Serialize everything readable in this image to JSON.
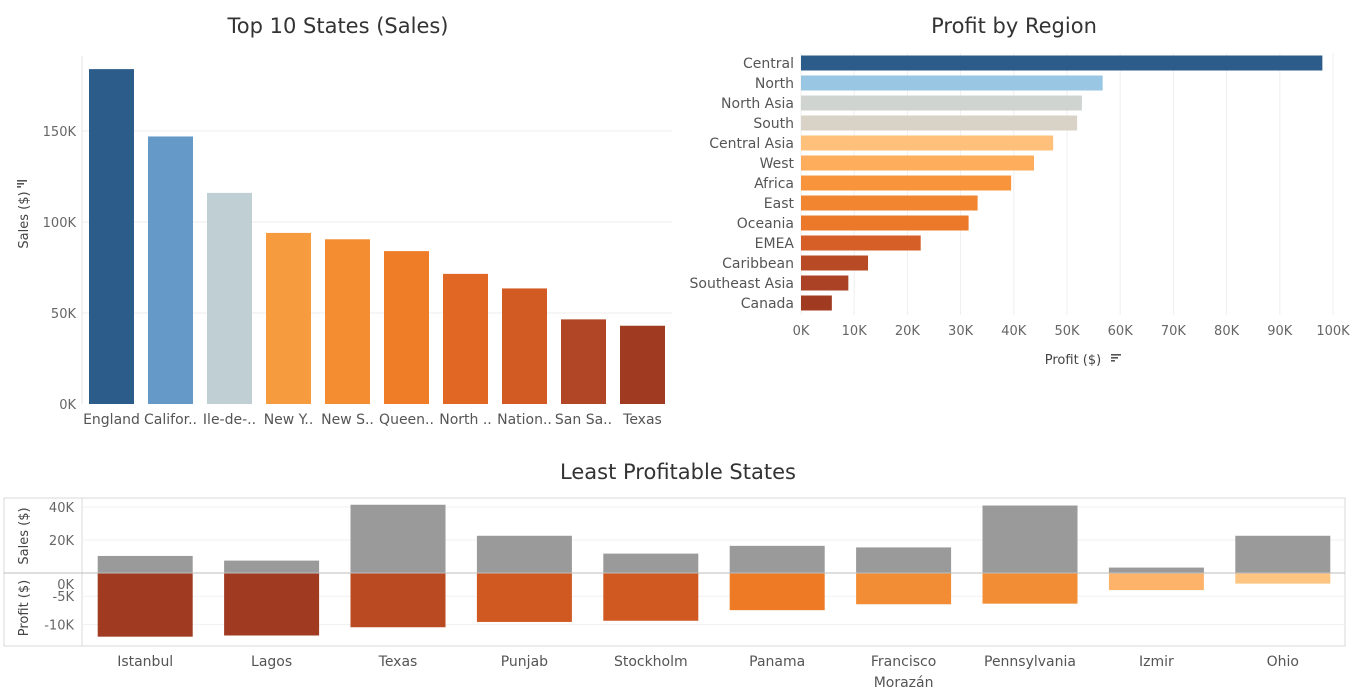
{
  "chart_data": [
    {
      "type": "bar",
      "title": "Top 10 States (Sales)",
      "ylabel": "Sales ($)",
      "xlabel": "",
      "ylim": [
        0,
        190000
      ],
      "yticks": [
        "0K",
        "50K",
        "100K",
        "150K"
      ],
      "categories": [
        "England",
        "Califor..",
        "Ile-de-..",
        "New Y..",
        "New S..",
        "Queen..",
        "North ..",
        "Nation..",
        "San Sa..",
        "Texas"
      ],
      "values": [
        184000,
        147000,
        116000,
        94000,
        90500,
        84000,
        71500,
        63500,
        46500,
        43000
      ],
      "colors": [
        "#2c5c8a",
        "#6499c8",
        "#c0cfd3",
        "#f79b3f",
        "#f48d32",
        "#ef7d28",
        "#e06724",
        "#d25a23",
        "#b04625",
        "#a03b22"
      ],
      "grid": true
    },
    {
      "type": "bar",
      "orientation": "horizontal",
      "title": "Profit by Region",
      "xlabel": "Profit ($)",
      "ylabel": "",
      "xlim": [
        0,
        100000
      ],
      "xticks": [
        "0K",
        "10K",
        "20K",
        "30K",
        "40K",
        "50K",
        "60K",
        "70K",
        "80K",
        "90K",
        "100K"
      ],
      "categories": [
        "Central",
        "North",
        "North Asia",
        "South",
        "Central Asia",
        "West",
        "Africa",
        "East",
        "Oceania",
        "EMEA",
        "Caribbean",
        "Southeast Asia",
        "Canada"
      ],
      "values": [
        98000,
        56700,
        52800,
        51900,
        47400,
        43800,
        39500,
        33200,
        31500,
        22500,
        12600,
        8900,
        5800
      ],
      "colors": [
        "#2c5c8a",
        "#98c6e3",
        "#cfd4d0",
        "#d9d2c6",
        "#fec07a",
        "#fdad5c",
        "#f7943c",
        "#f28630",
        "#ec782a",
        "#d65e27",
        "#b94a26",
        "#ab4226",
        "#a03b22"
      ],
      "grid": true
    },
    {
      "type": "bar",
      "title": "Least Profitable States",
      "categories": [
        "Istanbul",
        "Lagos",
        "Texas",
        "Punjab",
        "Stockholm",
        "Panama",
        "Francisco Morazán",
        "Pennsylvania",
        "Izmir",
        "Ohio"
      ],
      "category_lines": [
        [
          "Istanbul"
        ],
        [
          "Lagos"
        ],
        [
          "Texas"
        ],
        [
          "Punjab"
        ],
        [
          "Stockholm"
        ],
        [
          "Panama"
        ],
        [
          "Francisco",
          "Morazán"
        ],
        [
          "Pennsylvania"
        ],
        [
          "Izmir"
        ],
        [
          "Ohio"
        ]
      ],
      "series": [
        {
          "name": "Sales ($)",
          "values": [
            11000,
            8000,
            44000,
            24000,
            12500,
            17500,
            16500,
            43500,
            3500,
            24000
          ],
          "color": "#9a9a9a"
        },
        {
          "name": "Profit ($)",
          "values": [
            -10800,
            -10600,
            -9200,
            -8300,
            -8100,
            -6300,
            -5300,
            -5200,
            -2900,
            -1800
          ],
          "colors": [
            "#a03b22",
            "#a03b22",
            "#ba4a22",
            "#d05922",
            "#d05922",
            "#ee7a25",
            "#f38d35",
            "#f38d35",
            "#fdb46a",
            "#fec482"
          ]
        }
      ],
      "sales_axis": {
        "label": "Sales ($)",
        "ticks": [
          "40K",
          "20K"
        ],
        "tick_values": [
          40000,
          20000
        ],
        "max": 44000
      },
      "profit_axis": {
        "label": "Profit ($)",
        "ticks": [
          "0K",
          "-5K",
          "-10K"
        ],
        "tick_values": [
          0,
          -5000,
          -10000
        ],
        "min": -11000
      }
    }
  ]
}
